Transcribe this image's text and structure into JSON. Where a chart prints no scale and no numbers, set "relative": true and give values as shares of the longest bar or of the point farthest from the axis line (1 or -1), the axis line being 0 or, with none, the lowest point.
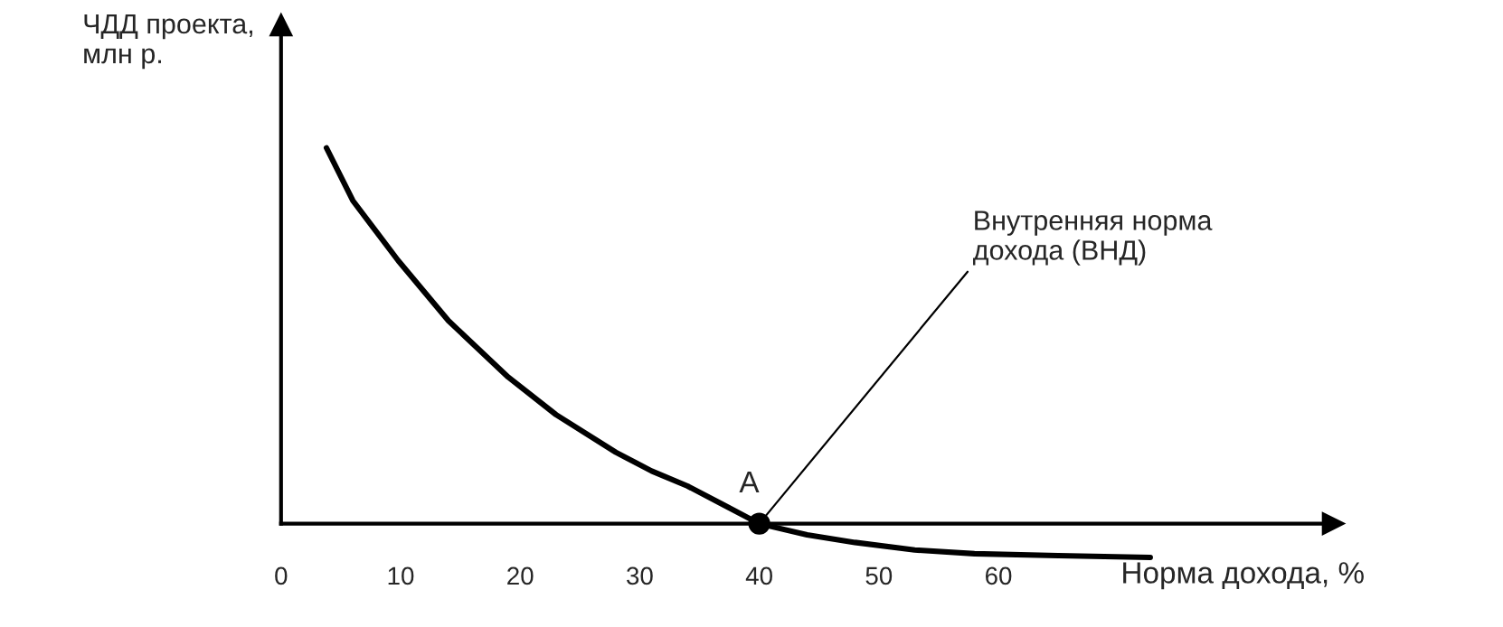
{
  "chart_data": {
    "type": "line",
    "relative": true,
    "xlabel": "Норма дохода, %",
    "ylabel": "ЧДД проекта,\nмлн р.",
    "xlim": [
      0,
      88
    ],
    "xticks": [
      0,
      10,
      20,
      30,
      40,
      50,
      60
    ],
    "grid": false,
    "legend": false,
    "marker": "none",
    "line_style": "solid",
    "series": [
      {
        "color": "#000000",
        "x": [
          3.8,
          6,
          9.8,
          14,
          19,
          23,
          28,
          31,
          34,
          37,
          40,
          44,
          48,
          53,
          58,
          65,
          72.7
        ],
        "values": [
          1.0,
          0.86,
          0.7,
          0.54,
          0.39,
          0.29,
          0.19,
          0.14,
          0.1,
          0.05,
          0,
          -0.03,
          -0.05,
          -0.07,
          -0.08,
          -0.085,
          -0.09
        ]
      },
      {
        "type": "scatter",
        "color": "#000000",
        "marker": "circle",
        "x": [
          40
        ],
        "values": [
          0
        ]
      }
    ],
    "annotations": [
      {
        "text": "A",
        "x": 40,
        "y": 0
      },
      {
        "text": "Внутренняя норма\nдохода (ВНД)",
        "x": 40,
        "y": 0
      }
    ]
  }
}
